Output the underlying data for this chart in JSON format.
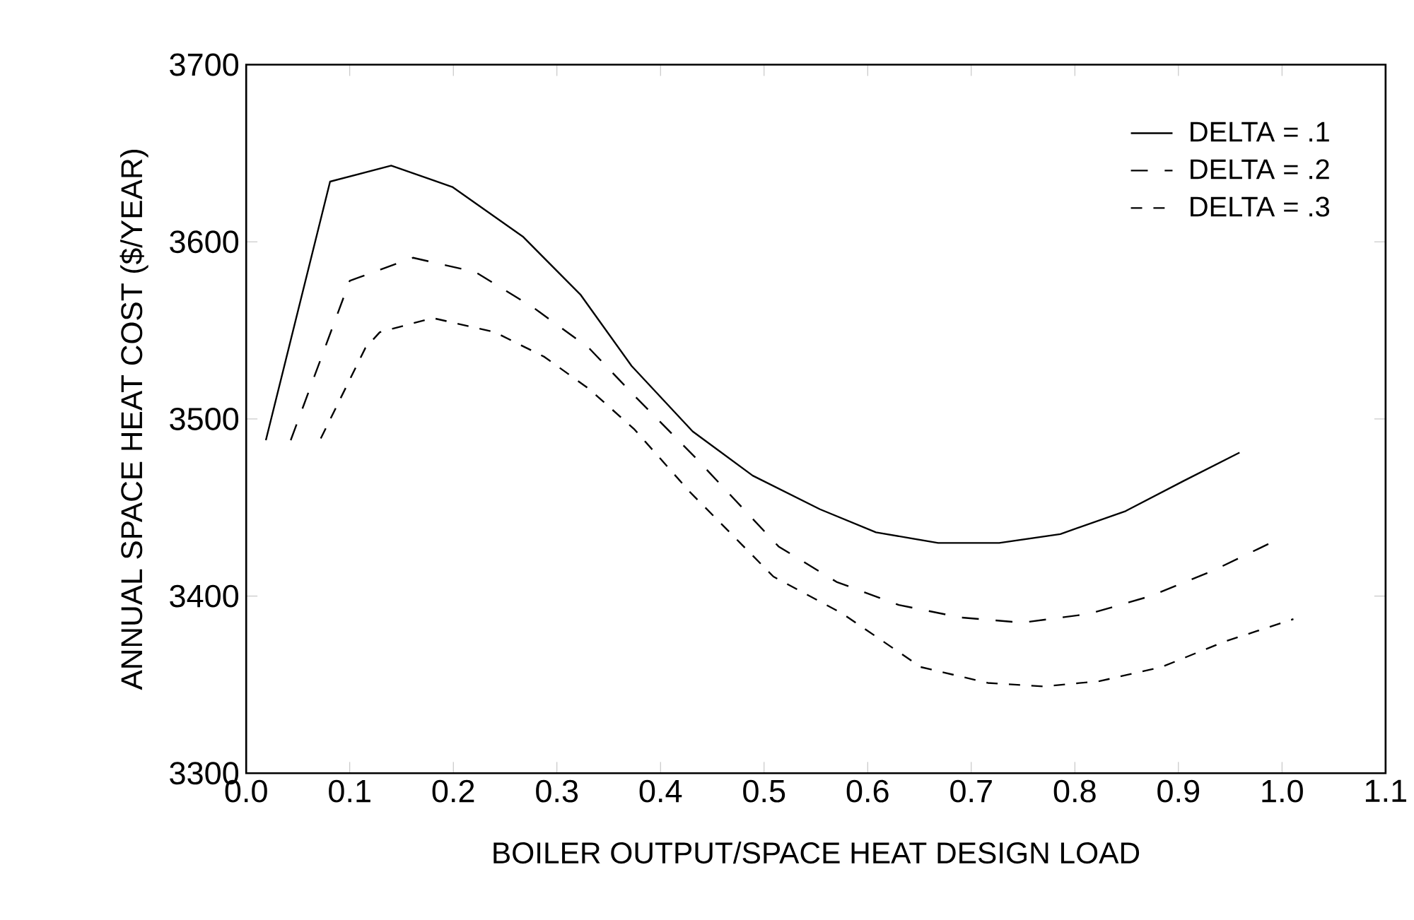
{
  "chart_data": {
    "type": "line",
    "xlabel": "BOILER OUTPUT/SPACE HEAT DESIGN LOAD",
    "ylabel": "ANNUAL SPACE HEAT COST ($/YEAR)",
    "xlim": [
      0,
      1.1
    ],
    "ylim": [
      3300,
      3700
    ],
    "xticks": [
      {
        "value": 0,
        "label": "0.0"
      },
      0.1,
      0.2,
      0.3,
      0.4,
      0.5,
      0.6,
      0.7,
      0.8,
      0.9,
      {
        "value": 1,
        "label": "1.0"
      },
      1.1
    ],
    "yticks": [
      3300,
      3400,
      3500,
      3600,
      3700
    ],
    "grid": false,
    "legend": "top right",
    "marker": "none",
    "series": [
      {
        "name": "DELTA = .1",
        "color": "#000000",
        "line_style": "solid",
        "x": [
          0.019,
          0.081,
          0.14,
          0.199,
          0.267,
          0.323,
          0.372,
          0.431,
          0.489,
          0.554,
          0.608,
          0.668,
          0.727,
          0.786,
          0.849,
          0.905,
          0.959
        ],
        "values": [
          3488,
          3634,
          3643,
          3631,
          3603,
          3570,
          3530,
          3493,
          3468,
          3449,
          3436,
          3430,
          3430,
          3435,
          3448,
          3465,
          3481
        ]
      },
      {
        "name": "DELTA = .2",
        "color": "#000000",
        "line_style": "dashed",
        "x": [
          0.043,
          0.1,
          0.161,
          0.221,
          0.277,
          0.331,
          0.375,
          0.434,
          0.514,
          0.57,
          0.63,
          0.689,
          0.749,
          0.814,
          0.873,
          0.932,
          0.989
        ],
        "values": [
          3488,
          3578,
          3591,
          3583,
          3563,
          3540,
          3513,
          3478,
          3428,
          3408,
          3395,
          3388,
          3385,
          3390,
          3400,
          3414,
          3430
        ]
      },
      {
        "name": "DELTA = .3",
        "color": "#000000",
        "line_style": "dashed",
        "x": [
          0.072,
          0.115,
          0.129,
          0.18,
          0.24,
          0.288,
          0.331,
          0.375,
          0.428,
          0.509,
          0.576,
          0.651,
          0.716,
          0.77,
          0.824,
          0.884,
          0.943,
          1.011
        ],
        "values": [
          3489,
          3540,
          3549,
          3557,
          3549,
          3535,
          3517,
          3494,
          3459,
          3411,
          3390,
          3360,
          3351,
          3349,
          3352,
          3360,
          3374,
          3387
        ]
      }
    ]
  }
}
